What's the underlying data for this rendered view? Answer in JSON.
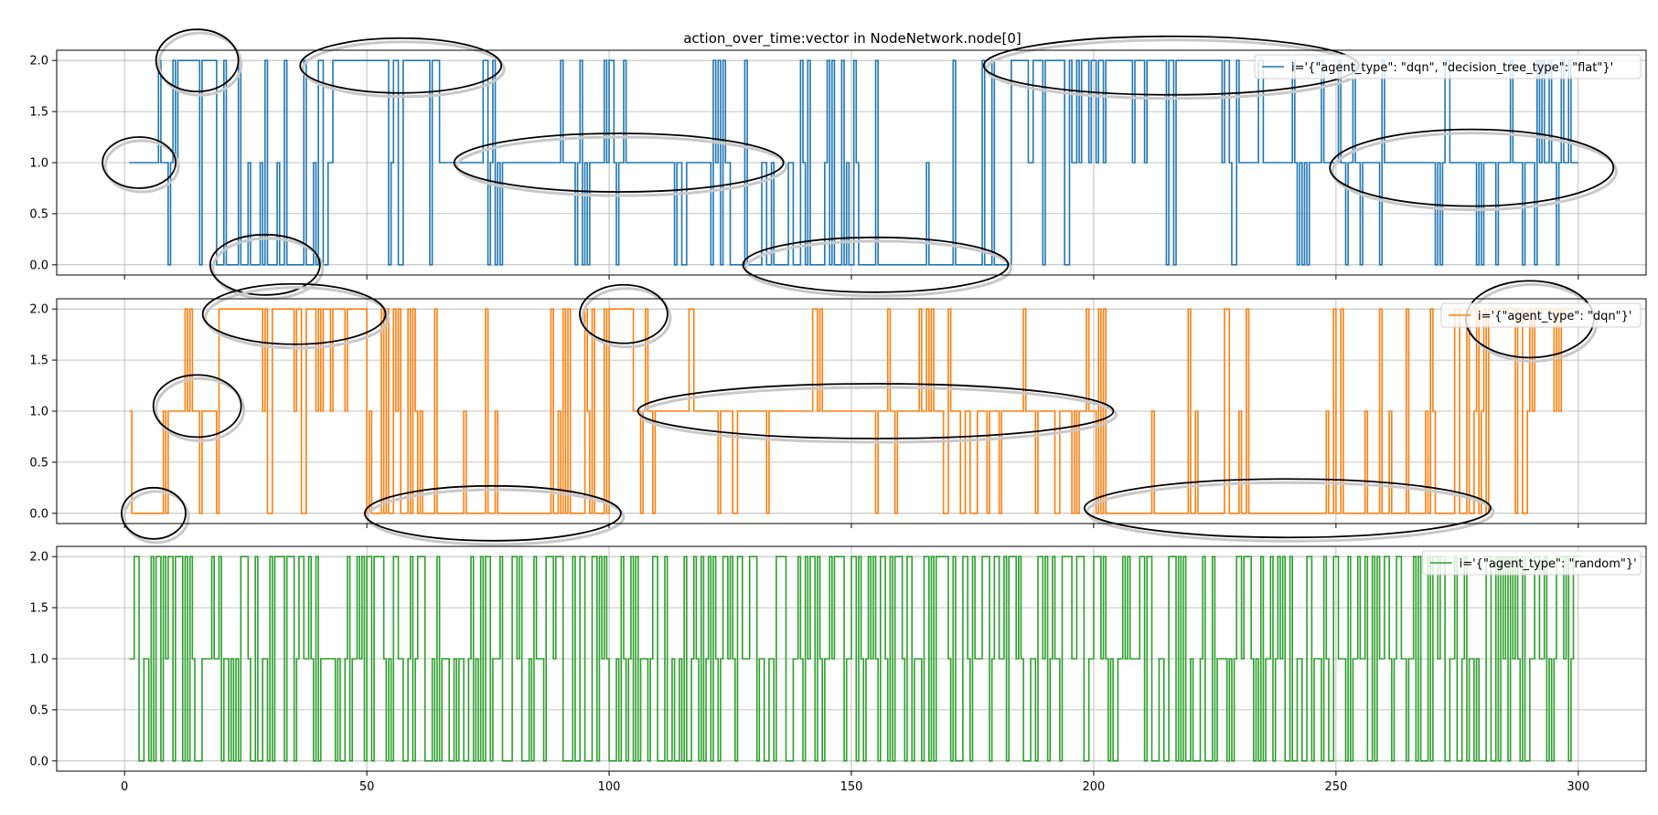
{
  "title": "action_over_time:vector in NodeNetwork.node[0]",
  "colors": {
    "dqn_flat": "#1f77b4",
    "dqn": "#ff7f0e",
    "random": "#2ca02c",
    "grid": "#b0b0b0",
    "annotation": "#000000"
  },
  "chart_data": [
    {
      "type": "line",
      "drawstyle": "steps",
      "title": "action_over_time:vector in NodeNetwork.node[0]",
      "xlabel": "",
      "ylabel": "",
      "xlim": [
        -14,
        314
      ],
      "ylim": [
        -0.1,
        2.1
      ],
      "xticks": [
        0,
        50,
        100,
        150,
        200,
        250,
        300
      ],
      "xtick_labels_visible": false,
      "yticks": [
        0.0,
        0.5,
        1.0,
        1.5,
        2.0
      ],
      "ytick_labels": [
        "0.0",
        "0.5",
        "1.0",
        "1.5",
        "2.0"
      ],
      "grid": true,
      "legend_position": "top-right",
      "series": [
        {
          "name": "i='{\"agent_type\": \"dqn\", \"decision_tree_type\": \"flat\"}'",
          "color": "#1f77b4",
          "x_range": [
            1,
            300
          ],
          "segments": [
            {
              "x": [
                1,
                10
              ],
              "level": 1,
              "spikes": [
                2,
                0
              ]
            },
            {
              "x": [
                10,
                20
              ],
              "level": 2,
              "spikes": [
                1,
                0
              ]
            },
            {
              "x": [
                20,
                40
              ],
              "level": 0,
              "spikes": [
                1,
                2
              ]
            },
            {
              "x": [
                40,
                65
              ],
              "level": 2,
              "spikes": [
                1,
                0
              ]
            },
            {
              "x": [
                65,
                125
              ],
              "level": 1,
              "spikes": [
                2,
                0
              ]
            },
            {
              "x": [
                125,
                183
              ],
              "level": 0,
              "spikes": [
                1,
                2
              ]
            },
            {
              "x": [
                183,
                230
              ],
              "level": 2,
              "spikes": [
                1,
                0
              ]
            },
            {
              "x": [
                230,
                300
              ],
              "level": 1,
              "spikes": [
                2,
                0
              ]
            }
          ],
          "annotations": [
            {
              "x": 3,
              "y": 1.0,
              "label": ""
            },
            {
              "x": 15,
              "y": 2.0,
              "label": ""
            },
            {
              "x": 29,
              "y": 0.0,
              "label": ""
            },
            {
              "x": 57,
              "y": 1.95,
              "label": ""
            },
            {
              "x": 102,
              "y": 1.0,
              "label": ""
            },
            {
              "x": 155,
              "y": 0.0,
              "label": ""
            },
            {
              "x": 216,
              "y": 1.95,
              "label": ""
            },
            {
              "x": 278,
              "y": 0.95,
              "label": ""
            }
          ]
        }
      ]
    },
    {
      "type": "line",
      "drawstyle": "steps",
      "xlim": [
        -14,
        314
      ],
      "ylim": [
        -0.1,
        2.1
      ],
      "xticks": [
        0,
        50,
        100,
        150,
        200,
        250,
        300
      ],
      "xtick_labels_visible": false,
      "yticks": [
        0.0,
        0.5,
        1.0,
        1.5,
        2.0
      ],
      "ytick_labels": [
        "0.0",
        "0.5",
        "1.0",
        "1.5",
        "2.0"
      ],
      "grid": true,
      "legend_position": "top-right",
      "series": [
        {
          "name": "i='{\"agent_type\": \"dqn\"}'",
          "color": "#ff7f0e",
          "x_range": [
            1,
            299
          ],
          "segments": [
            {
              "x": [
                1,
                9
              ],
              "level": 0,
              "spikes": [
                1
              ]
            },
            {
              "x": [
                9,
                19
              ],
              "level": 1,
              "spikes": [
                2,
                0
              ]
            },
            {
              "x": [
                19,
                50
              ],
              "level": 2,
              "spikes": [
                1,
                0
              ]
            },
            {
              "x": [
                50,
                100
              ],
              "level": 0,
              "spikes": [
                1,
                2
              ]
            },
            {
              "x": [
                100,
                105
              ],
              "level": 2,
              "spikes": [
                1,
                0
              ]
            },
            {
              "x": [
                105,
                200
              ],
              "level": 1,
              "spikes": [
                2,
                0
              ]
            },
            {
              "x": [
                200,
                279
              ],
              "level": 0,
              "spikes": [
                1,
                2
              ]
            },
            {
              "x": [
                279,
                299
              ],
              "level": 2,
              "spikes": [
                1,
                0
              ]
            }
          ],
          "annotations": [
            {
              "x": 6,
              "y": 0.0,
              "label": ""
            },
            {
              "x": 15,
              "y": 1.05,
              "label": ""
            },
            {
              "x": 35,
              "y": 1.95,
              "label": ""
            },
            {
              "x": 76,
              "y": 0.0,
              "label": ""
            },
            {
              "x": 103,
              "y": 1.95,
              "label": ""
            },
            {
              "x": 155,
              "y": 1.0,
              "label": ""
            },
            {
              "x": 240,
              "y": 0.05,
              "label": ""
            },
            {
              "x": 290,
              "y": 1.9,
              "label": ""
            }
          ]
        }
      ]
    },
    {
      "type": "line",
      "drawstyle": "steps",
      "xlabel": "",
      "xlim": [
        -14,
        314
      ],
      "ylim": [
        -0.1,
        2.1
      ],
      "xticks": [
        0,
        50,
        100,
        150,
        200,
        250,
        300
      ],
      "xtick_labels": [
        "0",
        "50",
        "100",
        "150",
        "200",
        "250",
        "300"
      ],
      "yticks": [
        0.0,
        0.5,
        1.0,
        1.5,
        2.0
      ],
      "ytick_labels": [
        "0.0",
        "0.5",
        "1.0",
        "1.5",
        "2.0"
      ],
      "grid": true,
      "legend_position": "top-right",
      "series": [
        {
          "name": "i='{\"agent_type\": \"random\"}'",
          "color": "#2ca02c",
          "x_range": [
            1,
            300
          ],
          "distribution": "uniform random over {0, 1, 2}"
        }
      ]
    }
  ]
}
